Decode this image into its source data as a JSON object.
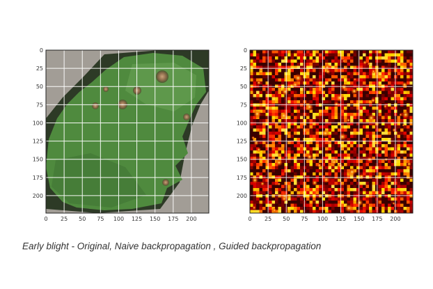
{
  "chart_data": [
    {
      "type": "image",
      "panel": "original",
      "content": "leaf photo",
      "x_ticks": [
        0,
        25,
        50,
        75,
        100,
        125,
        150,
        175,
        200
      ],
      "y_ticks": [
        0,
        25,
        50,
        75,
        100,
        125,
        150,
        175,
        200
      ],
      "xlim": [
        0,
        224
      ],
      "ylim": [
        224,
        0
      ],
      "grid": true
    },
    {
      "type": "heatmap",
      "panel": "saliency",
      "colormap": "hot",
      "x_ticks": [
        0,
        25,
        50,
        75,
        100,
        125,
        150,
        175,
        200
      ],
      "y_ticks": [
        0,
        25,
        50,
        75,
        100,
        125,
        150,
        175,
        200
      ],
      "xlim": [
        0,
        224
      ],
      "ylim": [
        224,
        0
      ],
      "grid": true
    }
  ],
  "caption": "Early blight - Original, Naive backpropagation , Guided backpropagation",
  "colors": {
    "background_gray": "#a8a39c",
    "leaf_green": "#4f8a3e",
    "heat_dark": "#3a0000",
    "heat_hot": "#ffdd44"
  }
}
